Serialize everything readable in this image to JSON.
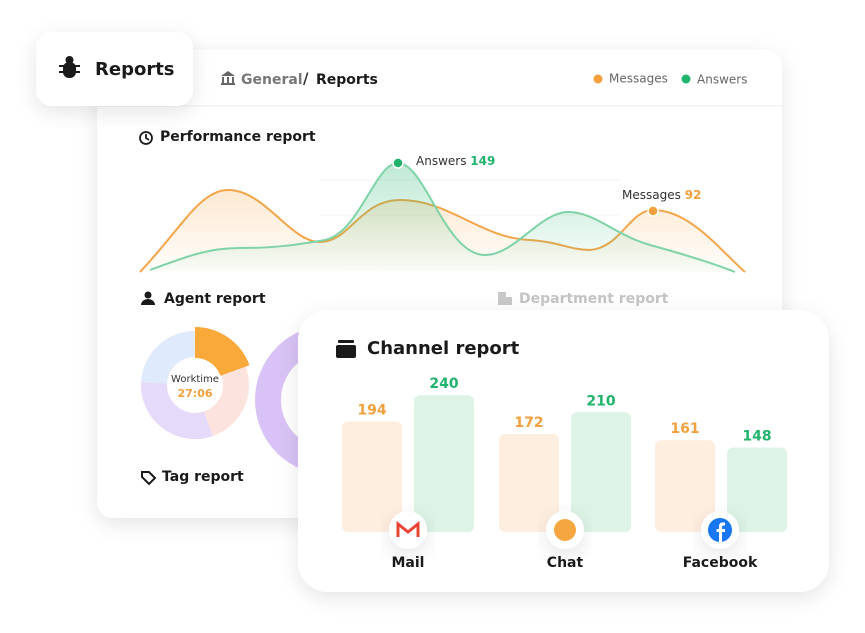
{
  "header": {
    "title": "Reports",
    "breadcrumb": [
      "General",
      "Reports"
    ],
    "separator": "/"
  },
  "legend": [
    {
      "name": "Messages",
      "color": "#f2a03d"
    },
    {
      "name": "Answers",
      "color": "#1fb36b"
    }
  ],
  "performance": {
    "title": "Performance report",
    "annotations": [
      {
        "label": "Answers",
        "value": 149
      },
      {
        "label": "Messages",
        "value": 92
      }
    ]
  },
  "agent": {
    "title": "Agent report",
    "center_label": "Worktime",
    "center_value": "27:06"
  },
  "department": {
    "title": "Department report"
  },
  "tag": {
    "title": "Tag report"
  },
  "channel": {
    "title": "Channel report",
    "categories": [
      "Mail",
      "Chat",
      "Facebook"
    ],
    "messages": [
      194,
      172,
      161
    ],
    "answers": [
      240,
      210,
      148
    ]
  }
}
